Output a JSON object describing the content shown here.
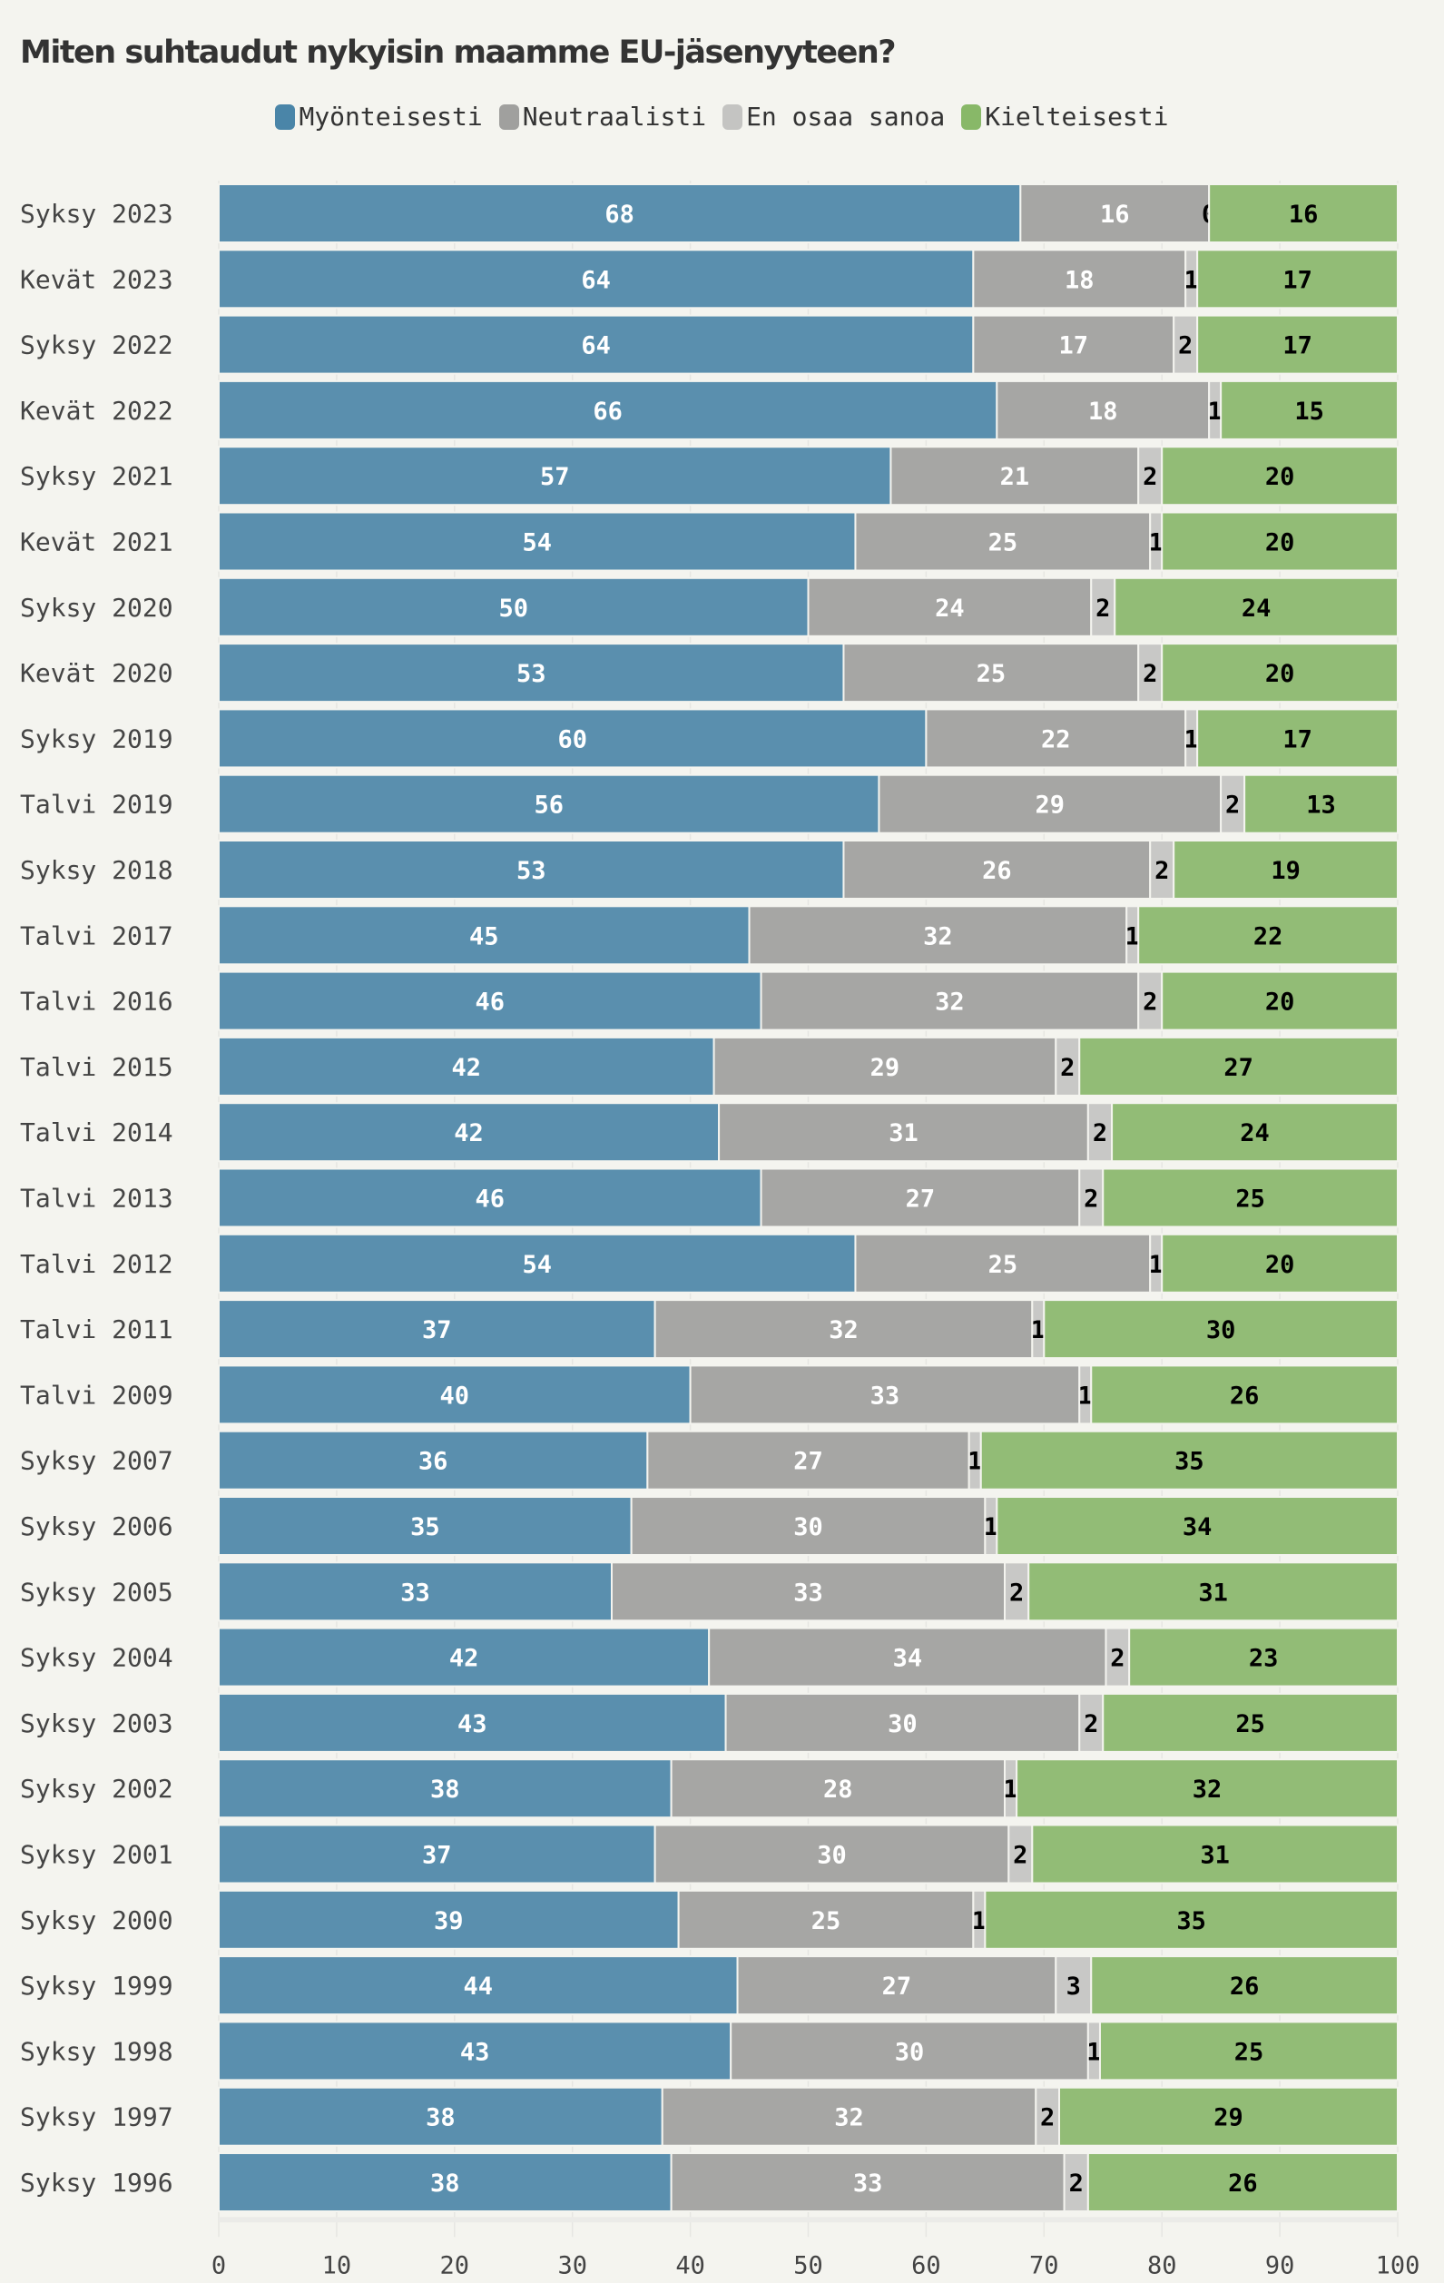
{
  "chart_data": {
    "type": "bar",
    "orientation": "horizontal",
    "stacked": true,
    "title": "Miten suhtaudut nykyisin maamme EU-jäsenyyteen?",
    "xlabel": "",
    "ylabel": "",
    "xlim": [
      0,
      100
    ],
    "xticks": [
      "0",
      "10",
      "20",
      "30",
      "40",
      "50",
      "60",
      "70",
      "80",
      "90",
      "100"
    ],
    "legend_position": "top-center",
    "grid": true,
    "categories": [
      "Syksy 2023",
      "Kevät 2023",
      "Syksy 2022",
      "Kevät 2022",
      "Syksy 2021",
      "Kevät 2021",
      "Syksy 2020",
      "Kevät 2020",
      "Syksy 2019",
      "Talvi 2019",
      "Syksy 2018",
      "Talvi 2017",
      "Talvi 2016",
      "Talvi 2015",
      "Talvi 2014",
      "Talvi 2013",
      "Talvi 2012",
      "Talvi 2011",
      "Talvi 2009",
      "Syksy 2007",
      "Syksy 2006",
      "Syksy 2005",
      "Syksy 2004",
      "Syksy 2003",
      "Syksy 2002",
      "Syksy 2001",
      "Syksy 2000",
      "Syksy 1999",
      "Syksy 1998",
      "Syksy 1997",
      "Syksy 1996"
    ],
    "series": [
      {
        "name": "Myönteisesti",
        "color": "#5a8fae",
        "label_color": "#ffffff",
        "values": [
          68,
          64,
          64,
          66,
          57,
          54,
          50,
          53,
          60,
          56,
          53,
          45,
          46,
          42,
          42,
          46,
          54,
          37,
          40,
          36,
          35,
          33,
          42,
          43,
          38,
          37,
          39,
          44,
          43,
          38,
          38
        ]
      },
      {
        "name": "Neutraalisti",
        "color": "#a6a6a4",
        "label_color": "#ffffff",
        "values": [
          16,
          18,
          17,
          18,
          21,
          25,
          24,
          25,
          22,
          29,
          26,
          32,
          32,
          29,
          31,
          27,
          25,
          32,
          33,
          27,
          30,
          33,
          34,
          30,
          28,
          30,
          25,
          27,
          30,
          32,
          33
        ]
      },
      {
        "name": "En osaa sanoa",
        "color": "#c8c8c6",
        "label_color": "#000000",
        "values": [
          0,
          1,
          2,
          1,
          2,
          1,
          2,
          2,
          1,
          2,
          2,
          1,
          2,
          2,
          2,
          2,
          1,
          1,
          1,
          1,
          1,
          2,
          2,
          2,
          1,
          2,
          1,
          3,
          1,
          2,
          2
        ]
      },
      {
        "name": "Kielteisesti",
        "color": "#92bc76",
        "label_color": "#000000",
        "values": [
          16,
          17,
          17,
          15,
          20,
          20,
          24,
          20,
          17,
          13,
          19,
          22,
          20,
          27,
          24,
          25,
          20,
          30,
          26,
          35,
          34,
          31,
          23,
          25,
          32,
          31,
          35,
          26,
          25,
          29,
          26
        ]
      }
    ]
  }
}
